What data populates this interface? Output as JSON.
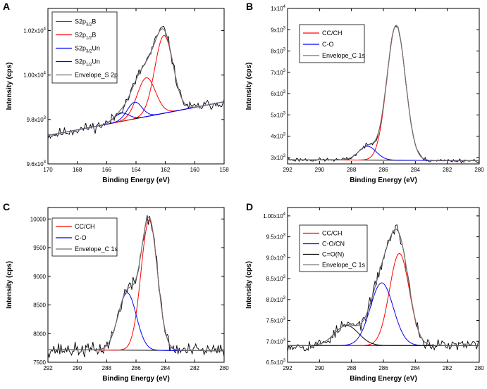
{
  "figure_title": "XPS spectra panels",
  "chart_data": [
    {
      "type": "line",
      "panel": "A",
      "title": "",
      "xlabel": "Binding Energy (eV)",
      "ylabel": "Intensity (cps)",
      "xlim": [
        170,
        158
      ],
      "ylim": [
        9600,
        10300
      ],
      "x_ticks": [
        170,
        168,
        166,
        164,
        162,
        160,
        158
      ],
      "x_tick_labels": [
        "170",
        "168",
        "166",
        "164",
        "162",
        "160",
        "158"
      ],
      "y_ticks": [
        9600,
        9800,
        10000,
        10200
      ],
      "y_tick_base": [
        "9.6x10",
        "9.8x10",
        "1.00x10",
        "1.02x10"
      ],
      "y_tick_exp": [
        "3",
        "3",
        "4",
        "4"
      ],
      "baseline": {
        "x": [
          170,
          158
        ],
        "y": [
          9728,
          9880
        ]
      },
      "series": [
        {
          "name": "S2p3/2B",
          "legend_main": "S2p",
          "legend_sub": "3/2",
          "legend_tail": "B",
          "color": "#ff0000",
          "kind": "gauss",
          "center": 162.1,
          "sigma": 0.62,
          "amplitude": 350
        },
        {
          "name": "S2p1/2B",
          "legend_main": "S2p",
          "legend_sub": "1/2",
          "legend_tail": "B",
          "color": "#ff0000",
          "kind": "gauss",
          "center": 163.3,
          "sigma": 0.62,
          "amplitude": 175
        },
        {
          "name": "S2p3/2Un",
          "legend_main": "S2p",
          "legend_sub": "3/2",
          "legend_tail": "Un",
          "color": "#0000ff",
          "kind": "gauss",
          "center": 164.1,
          "sigma": 0.5,
          "amplitude": 75
        },
        {
          "name": "S2p1/2Un",
          "legend_main": "S2p",
          "legend_sub": "1/2",
          "legend_tail": "Un",
          "color": "#0000ff",
          "kind": "gauss",
          "center": 165.0,
          "sigma": 0.5,
          "amplitude": 37
        },
        {
          "name": "Envelope_S 2p",
          "legend_main": "Envelope_S 2p",
          "legend_sub": "",
          "legend_tail": "",
          "color": "#707070",
          "kind": "envelope"
        }
      ],
      "raw": {
        "color": "#000000",
        "x_start": 170,
        "x_end": 158,
        "points": 150,
        "noise": 18,
        "seed": 11
      }
    },
    {
      "type": "line",
      "panel": "B",
      "title": "",
      "xlabel": "Binding Energy (eV)",
      "ylabel": "Intensity (cps)",
      "xlim": [
        292,
        280
      ],
      "ylim": [
        2700,
        10000
      ],
      "x_ticks": [
        292,
        290,
        288,
        286,
        284,
        282,
        280
      ],
      "x_tick_labels": [
        "292",
        "290",
        "288",
        "286",
        "284",
        "282",
        "280"
      ],
      "y_ticks": [
        3000,
        4000,
        5000,
        6000,
        7000,
        8000,
        9000,
        10000
      ],
      "y_tick_base": [
        "3x10",
        "4x10",
        "5x10",
        "6x10",
        "7x10",
        "8x10",
        "9x10",
        "1x10"
      ],
      "y_tick_exp": [
        "3",
        "3",
        "3",
        "3",
        "3",
        "3",
        "3",
        "4"
      ],
      "baseline": {
        "x": [
          292,
          280
        ],
        "y": [
          2900,
          2850
        ]
      },
      "series": [
        {
          "name": "CC/CH",
          "legend_main": "CC/CH",
          "legend_sub": "",
          "legend_tail": "",
          "color": "#ff0000",
          "kind": "gauss",
          "center": 285.2,
          "sigma": 0.58,
          "amplitude": 6330
        },
        {
          "name": "C-O",
          "legend_main": "C-O",
          "legend_sub": "",
          "legend_tail": "",
          "color": "#0000ff",
          "kind": "gauss",
          "center": 287.0,
          "sigma": 0.55,
          "amplitude": 650
        },
        {
          "name": "Envelope_C 1s",
          "legend_main": "Envelope_C 1s",
          "legend_sub": "",
          "legend_tail": "",
          "color": "#707070",
          "kind": "envelope"
        }
      ],
      "raw": {
        "color": "#000000",
        "x_start": 292,
        "x_end": 280,
        "points": 150,
        "noise": 70,
        "seed": 23
      }
    },
    {
      "type": "line",
      "panel": "C",
      "title": "",
      "xlabel": "Binding Energy (eV)",
      "ylabel": "Intensity (cps)",
      "xlim": [
        292,
        280
      ],
      "ylim": [
        7500,
        10200
      ],
      "x_ticks": [
        292,
        290,
        288,
        286,
        284,
        282,
        280
      ],
      "x_tick_labels": [
        "292",
        "290",
        "288",
        "286",
        "284",
        "282",
        "280"
      ],
      "y_ticks": [
        7500,
        8000,
        8500,
        9000,
        9500,
        10000
      ],
      "y_tick_base": [
        "7500",
        "8000",
        "8500",
        "9000",
        "9500",
        "10000"
      ],
      "y_tick_exp": [
        "",
        "",
        "",
        "",
        "",
        ""
      ],
      "baseline": {
        "x": [
          292,
          280
        ],
        "y": [
          7720,
          7700
        ]
      },
      "series": [
        {
          "name": "CC/CH",
          "legend_main": "CC/CH",
          "legend_sub": "",
          "legend_tail": "",
          "color": "#ff0000",
          "kind": "gauss",
          "center": 285.1,
          "sigma": 0.56,
          "amplitude": 2270
        },
        {
          "name": "C-O",
          "legend_main": "C-O",
          "legend_sub": "",
          "legend_tail": "",
          "color": "#0000ff",
          "kind": "gauss",
          "center": 286.6,
          "sigma": 0.62,
          "amplitude": 1000
        },
        {
          "name": "Envelope_C 1s",
          "legend_main": "Envelope_C 1s",
          "legend_sub": "",
          "legend_tail": "",
          "color": "#707070",
          "kind": "envelope"
        }
      ],
      "raw": {
        "color": "#000000",
        "x_start": 292,
        "x_end": 280,
        "points": 150,
        "noise": 95,
        "seed": 37
      }
    },
    {
      "type": "line",
      "panel": "D",
      "title": "",
      "xlabel": "Binding Energy (eV)",
      "ylabel": "Intensity (cps)",
      "xlim": [
        292,
        280
      ],
      "ylim": [
        6500,
        10200
      ],
      "x_ticks": [
        292,
        290,
        288,
        286,
        284,
        282,
        280
      ],
      "x_tick_labels": [
        "292",
        "290",
        "288",
        "286",
        "284",
        "282",
        "280"
      ],
      "y_ticks": [
        6500,
        7000,
        7500,
        8000,
        8500,
        9000,
        9500,
        10000
      ],
      "y_tick_base": [
        "6.5x10",
        "7.0x10",
        "7.5x10",
        "8.0x10",
        "8.5x10",
        "9.0x10",
        "9.5x10",
        "1.00x10"
      ],
      "y_tick_exp": [
        "3",
        "3",
        "3",
        "3",
        "3",
        "3",
        "3",
        "4"
      ],
      "baseline": {
        "x": [
          292,
          280
        ],
        "y": [
          6900,
          6900
        ]
      },
      "series": [
        {
          "name": "CC/CH",
          "legend_main": "CC/CH",
          "legend_sub": "",
          "legend_tail": "",
          "color": "#ff0000",
          "kind": "gauss",
          "center": 285.0,
          "sigma": 0.62,
          "amplitude": 2200
        },
        {
          "name": "C-O/CN",
          "legend_main": "C-O/CN",
          "legend_sub": "",
          "legend_tail": "",
          "color": "#0000ff",
          "kind": "gauss",
          "center": 286.1,
          "sigma": 0.72,
          "amplitude": 1500
        },
        {
          "name": "C=O(N)",
          "legend_main": "C=O(N)",
          "legend_sub": "",
          "legend_tail": "",
          "color": "#000000",
          "kind": "gauss",
          "center": 288.3,
          "sigma": 0.75,
          "amplitude": 480
        },
        {
          "name": "Envelope_C 1s",
          "legend_main": "Envelope_C 1s",
          "legend_sub": "",
          "legend_tail": "",
          "color": "#707070",
          "kind": "envelope"
        }
      ],
      "raw": {
        "color": "#000000",
        "x_start": 292,
        "x_end": 280,
        "points": 150,
        "noise": 110,
        "seed": 53
      }
    }
  ]
}
